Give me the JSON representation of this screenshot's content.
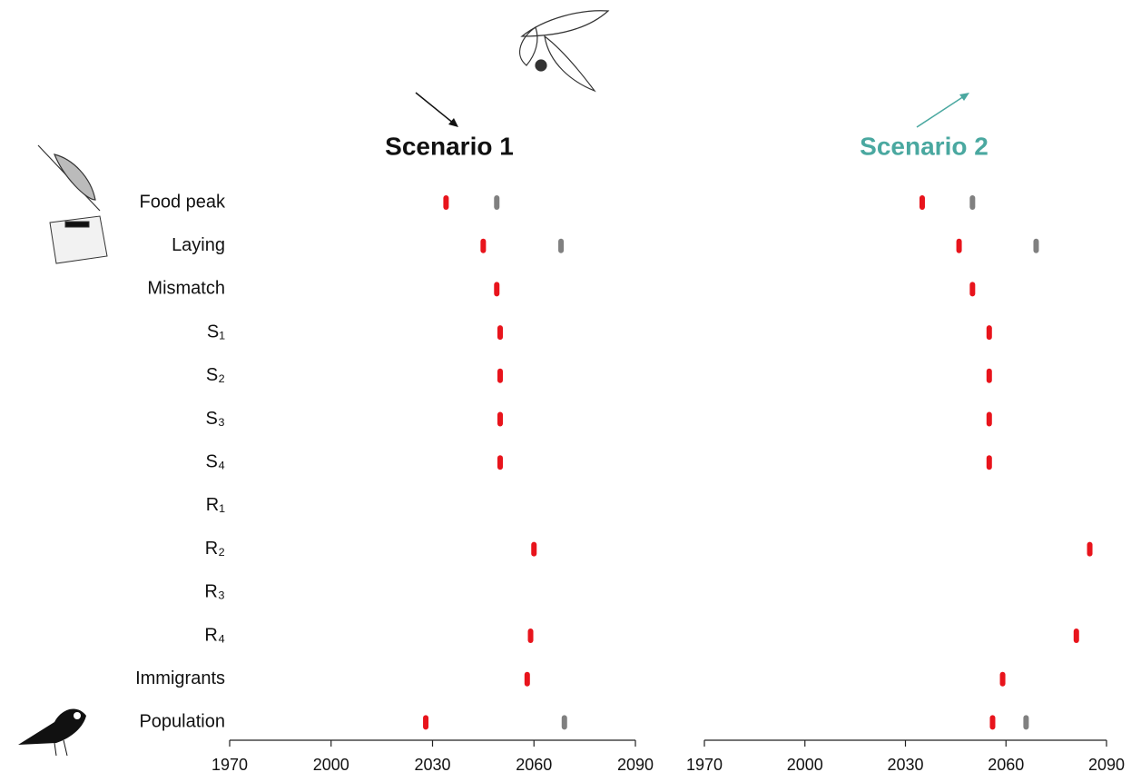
{
  "chart_data": [
    {
      "type": "dot",
      "title": "Scenario 1",
      "title_color": "#111111",
      "categories": [
        "Food peak",
        "Laying",
        "Mismatch",
        "S₁",
        "S₂",
        "S₃",
        "S₄",
        "R₁",
        "R₂",
        "R₃",
        "R₄",
        "Immigrants",
        "Population"
      ],
      "series": [
        {
          "color": "#e8141c",
          "values": [
            2034,
            2045,
            2049,
            2050,
            2050,
            2050,
            2050,
            null,
            2060,
            null,
            2059,
            2058,
            2028
          ]
        },
        {
          "color": "#808080",
          "values": [
            2049,
            2068,
            null,
            null,
            null,
            null,
            null,
            null,
            null,
            null,
            null,
            null,
            2069
          ]
        }
      ],
      "xlim": [
        1970,
        2090
      ],
      "xticks": [
        1970,
        2000,
        2030,
        2060,
        2090
      ]
    },
    {
      "type": "dot",
      "title": "Scenario 2",
      "title_color": "#4aa8a0",
      "series": [
        {
          "color": "#e8141c",
          "values": [
            2035,
            2046,
            2050,
            2055,
            2055,
            2055,
            2055,
            null,
            2085,
            null,
            2081,
            2059,
            2056
          ]
        },
        {
          "color": "#808080",
          "values": [
            2050,
            2069,
            null,
            null,
            null,
            null,
            null,
            null,
            null,
            null,
            null,
            null,
            2066
          ]
        }
      ],
      "xlim": [
        1970,
        2090
      ],
      "xticks": [
        1970,
        2000,
        2030,
        2060,
        2090
      ]
    }
  ]
}
